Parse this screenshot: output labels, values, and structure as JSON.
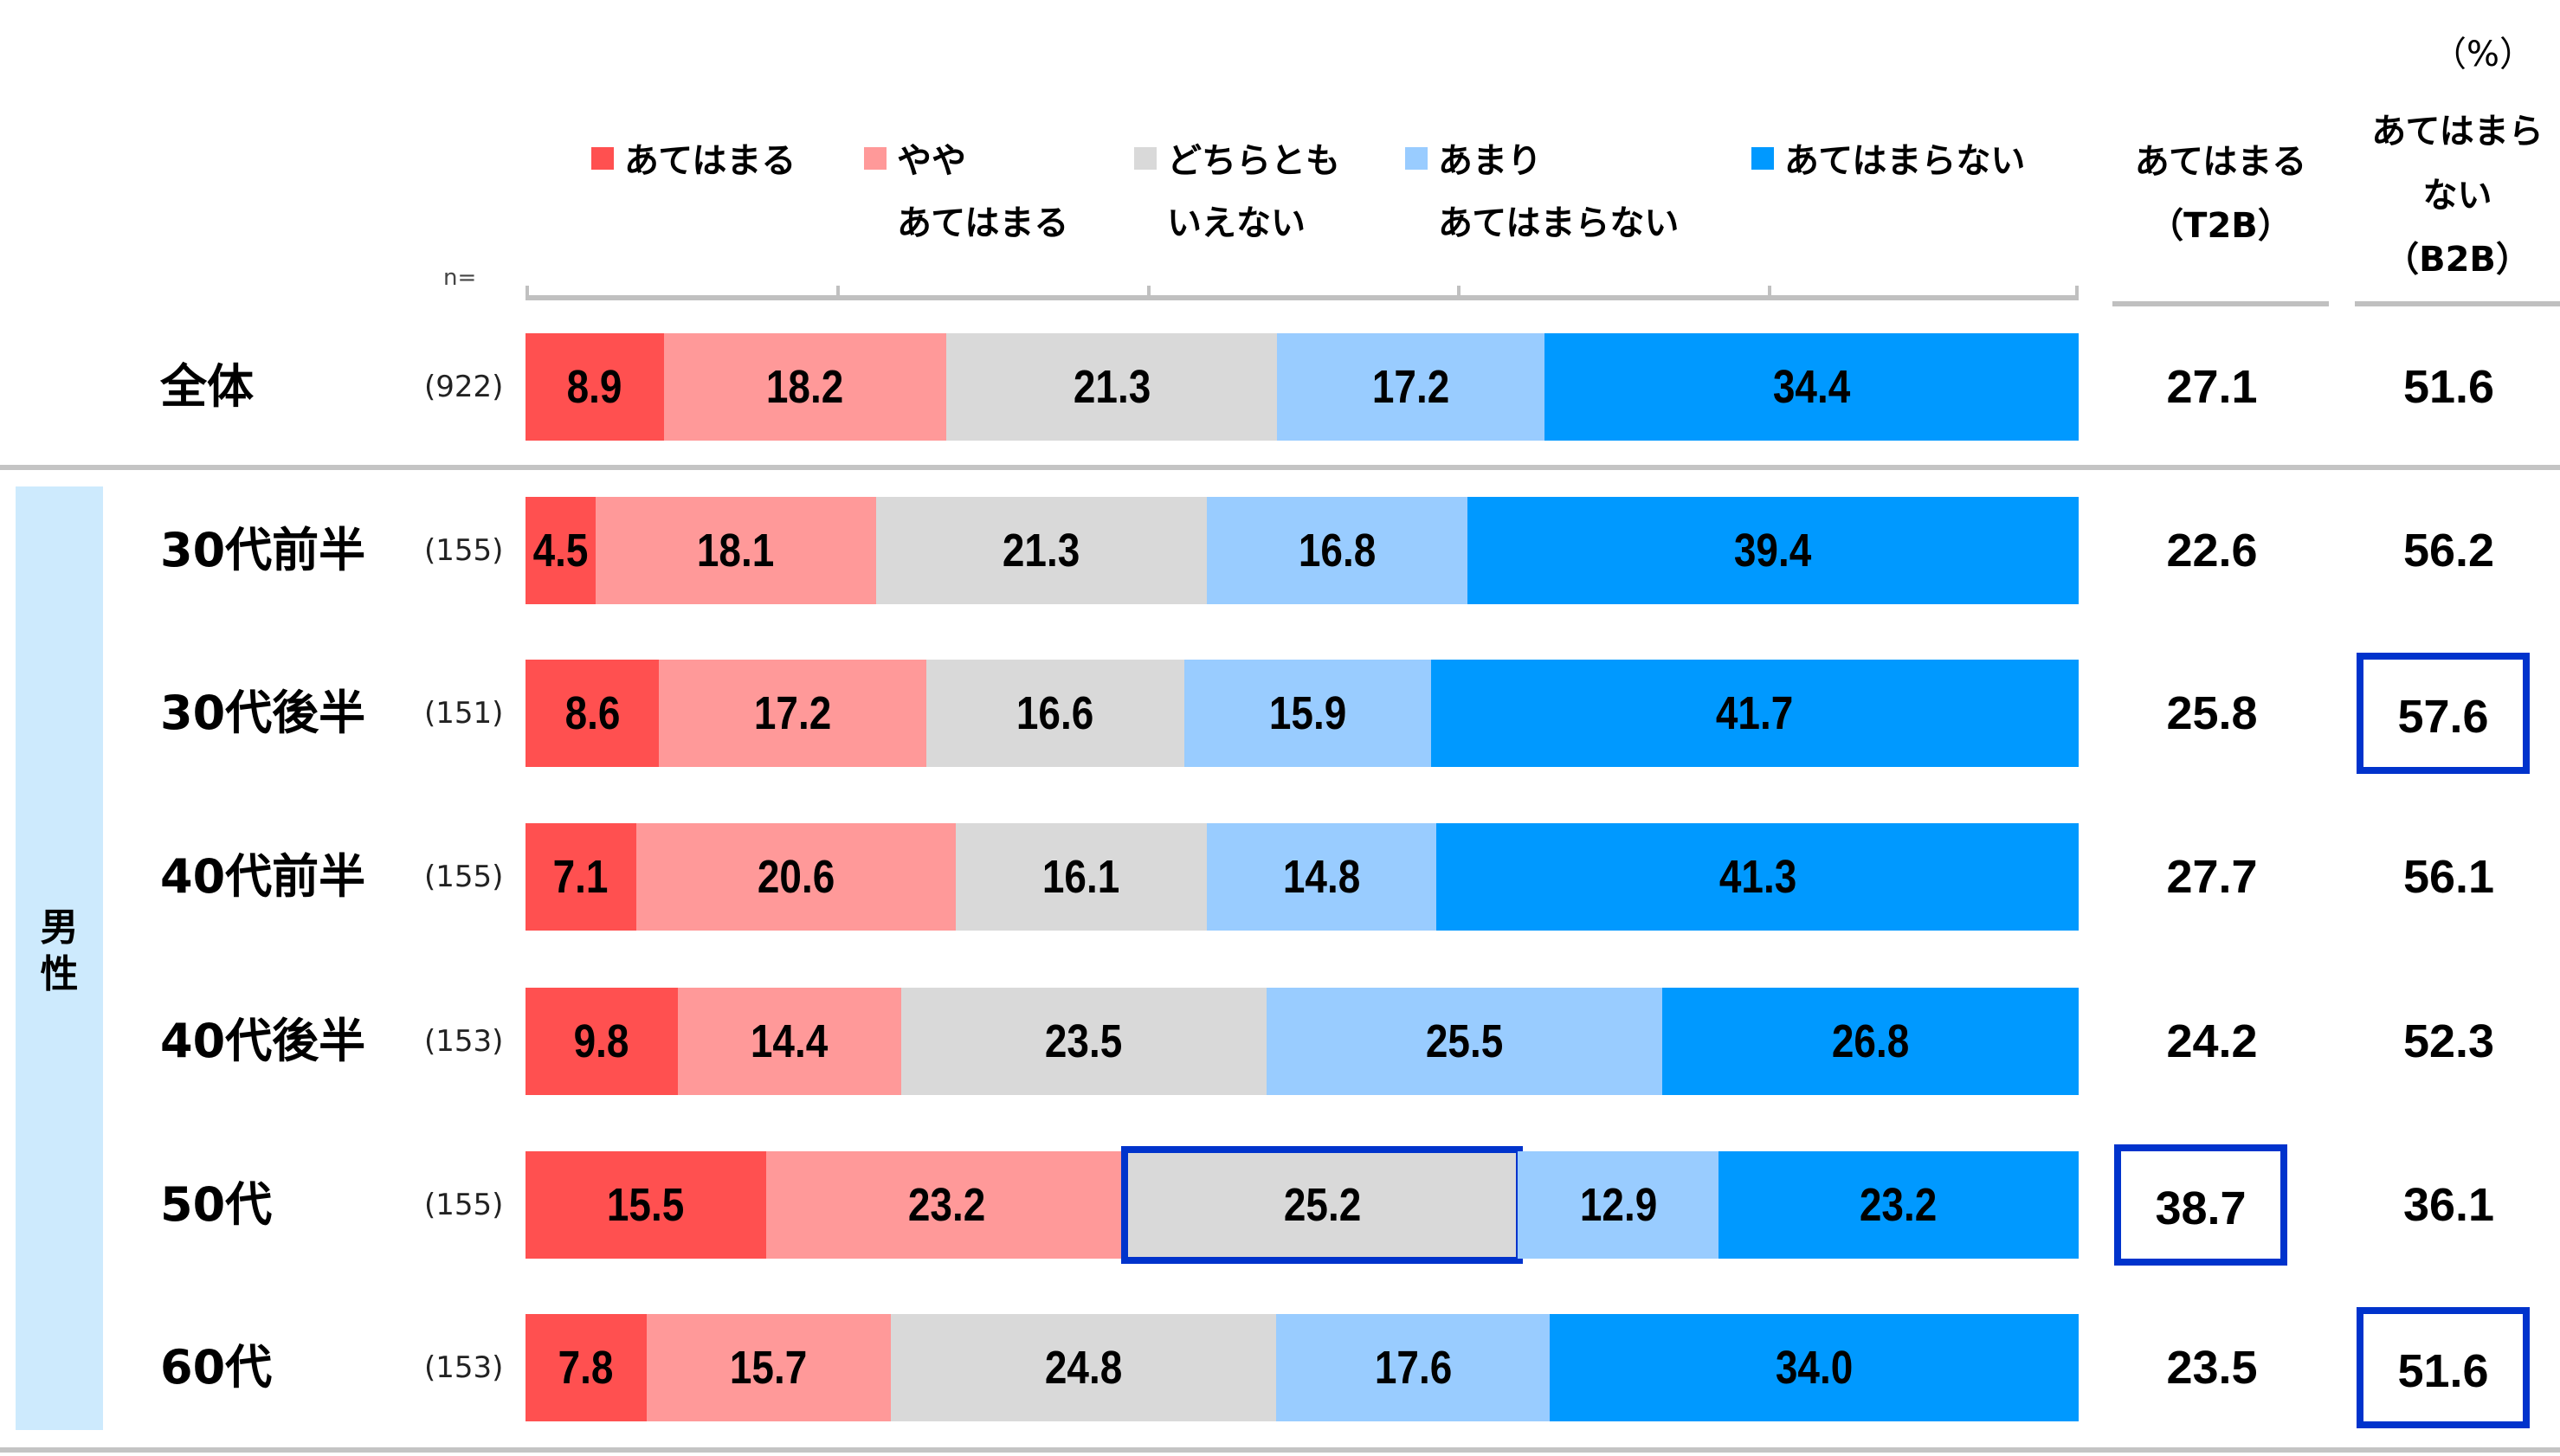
{
  "unit_label": "（%）",
  "n_label": "n=",
  "group_label": "男\n性",
  "legend": [
    {
      "label": "あてはまる",
      "color": "#ff5050"
    },
    {
      "label": "やや\nあてはまる",
      "color": "#ff9999"
    },
    {
      "label": "どちらとも\nいえない",
      "color": "#d9d9d9"
    },
    {
      "label": "あまり\nあてはまらない",
      "color": "#99ccff"
    },
    {
      "label": "あてはまらない",
      "color": "#0099ff"
    }
  ],
  "summary_headers": {
    "t2b": "あてはまる\n（T2B）",
    "b2b": "あてはまら\nない\n（B2B）"
  },
  "highlight_color": "#0033cc",
  "chart_data": {
    "type": "bar",
    "orientation": "horizontal",
    "stacked": "100%",
    "title": "",
    "xlabel": "",
    "ylabel": "",
    "xlim": [
      0,
      100
    ],
    "unit": "%",
    "categories": [
      "全体",
      "30代前半",
      "30代後半",
      "40代前半",
      "40代後半",
      "50代",
      "60代"
    ],
    "n": [
      "(922)",
      "(155)",
      "(151)",
      "(155)",
      "(153)",
      "(155)",
      "(153)"
    ],
    "group": [
      null,
      "男性",
      "男性",
      "男性",
      "男性",
      "男性",
      "男性"
    ],
    "series": [
      {
        "name": "あてはまる",
        "color": "#ff5050",
        "values": [
          8.9,
          4.5,
          8.6,
          7.1,
          9.8,
          15.5,
          7.8
        ]
      },
      {
        "name": "ややあてはまる",
        "color": "#ff9999",
        "values": [
          18.2,
          18.1,
          17.2,
          20.6,
          14.4,
          23.2,
          15.7
        ]
      },
      {
        "name": "どちらともいえない",
        "color": "#d9d9d9",
        "values": [
          21.3,
          21.3,
          16.6,
          16.1,
          23.5,
          25.2,
          24.8
        ]
      },
      {
        "name": "あまりあてはまらない",
        "color": "#99ccff",
        "values": [
          17.2,
          16.8,
          15.9,
          14.8,
          25.5,
          12.9,
          17.6
        ]
      },
      {
        "name": "あてはまらない",
        "color": "#0099ff",
        "values": [
          34.4,
          39.4,
          41.7,
          41.3,
          26.8,
          23.2,
          34.0
        ]
      }
    ],
    "labels": [
      [
        "8.9",
        "18.2",
        "21.3",
        "17.2",
        "34.4"
      ],
      [
        "4.5",
        "18.1",
        "21.3",
        "16.8",
        "39.4"
      ],
      [
        "8.6",
        "17.2",
        "16.6",
        "15.9",
        "41.7"
      ],
      [
        "7.1",
        "20.6",
        "16.1",
        "14.8",
        "41.3"
      ],
      [
        "9.8",
        "14.4",
        "23.5",
        "25.5",
        "26.8"
      ],
      [
        "15.5",
        "23.2",
        "25.2",
        "12.9",
        "23.2"
      ],
      [
        "7.8",
        "15.7",
        "24.8",
        "17.6",
        "34.0"
      ]
    ],
    "t2b": [
      "27.1",
      "22.6",
      "25.8",
      "27.7",
      "24.2",
      "38.7",
      "23.5"
    ],
    "b2b": [
      "51.6",
      "56.2",
      "57.6",
      "56.1",
      "52.3",
      "36.1",
      "51.6"
    ],
    "highlights": {
      "segments": [
        {
          "row": 5,
          "series": 2
        }
      ],
      "t2b": [
        5
      ],
      "b2b": [
        2,
        6
      ]
    },
    "legend_position": "top"
  }
}
